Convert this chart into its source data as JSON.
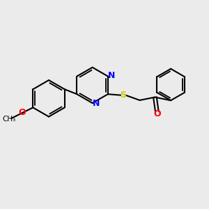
{
  "bg_color": "#ebebeb",
  "bond_color": "#000000",
  "N_color": "#0000ff",
  "O_color": "#ff0000",
  "S_color": "#cccc00",
  "bond_width": 1.5,
  "font_size": 9,
  "fig_bg": "#ebebeb",
  "xlim": [
    0,
    10
  ],
  "ylim": [
    0,
    10
  ]
}
